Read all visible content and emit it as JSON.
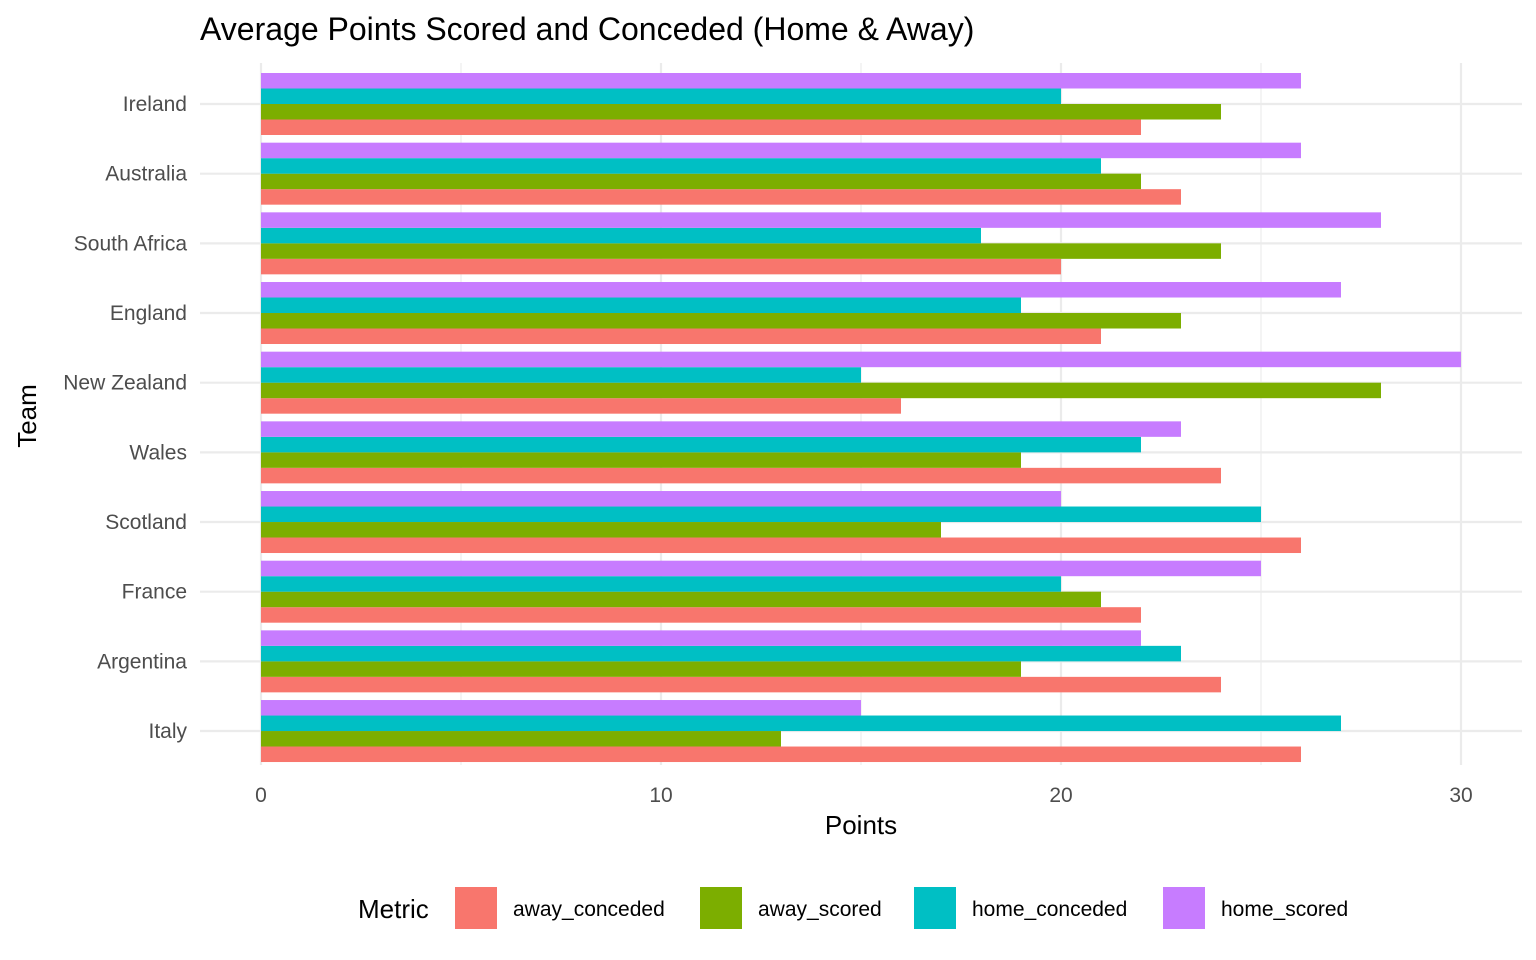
{
  "chart_data": {
    "type": "bar",
    "orientation": "horizontal",
    "title": "Average Points Scored and Conceded (Home & Away)",
    "xlabel": "Points",
    "ylabel": "Team",
    "xlim": [
      0,
      30
    ],
    "x_ticks": [
      0,
      10,
      20,
      30
    ],
    "grid": true,
    "legend": {
      "title": "Metric",
      "position": "bottom"
    },
    "categories": [
      "Ireland",
      "Australia",
      "South Africa",
      "England",
      "New Zealand",
      "Wales",
      "Scotland",
      "France",
      "Argentina",
      "Italy"
    ],
    "series": [
      {
        "name": "away_conceded",
        "color": "#F8766D",
        "values": [
          22,
          23,
          20,
          21,
          16,
          24,
          26,
          22,
          24,
          26
        ]
      },
      {
        "name": "away_scored",
        "color": "#7CAE00",
        "values": [
          24,
          22,
          24,
          23,
          28,
          19,
          17,
          21,
          19,
          13
        ]
      },
      {
        "name": "home_conceded",
        "color": "#00BFC4",
        "values": [
          20,
          21,
          18,
          19,
          15,
          22,
          25,
          20,
          23,
          27
        ]
      },
      {
        "name": "home_scored",
        "color": "#C77CFF",
        "values": [
          26,
          26,
          28,
          27,
          30,
          23,
          20,
          25,
          22,
          15
        ]
      }
    ]
  }
}
